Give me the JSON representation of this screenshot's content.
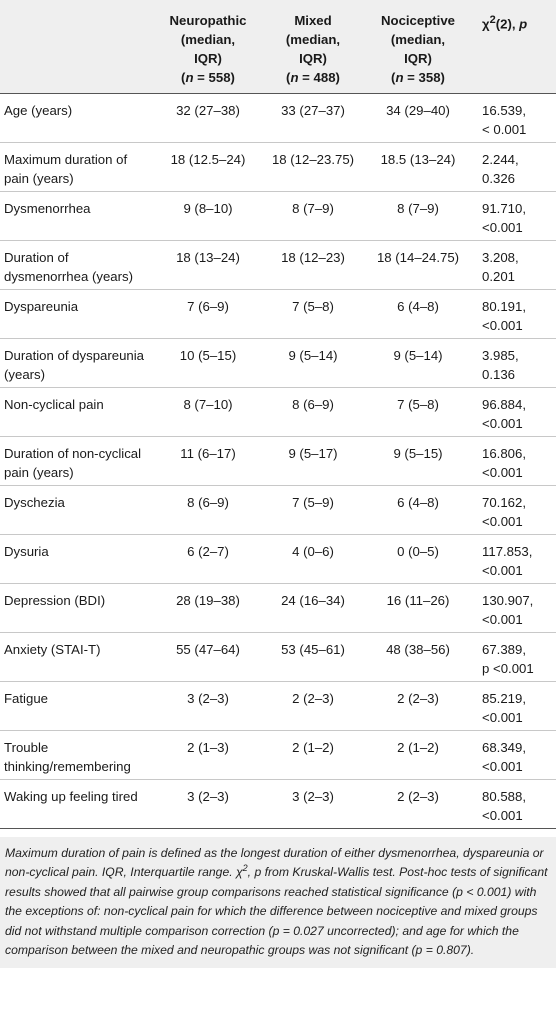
{
  "header": {
    "col1": "",
    "col2": {
      "l1": "Neuropathic",
      "l2": "(median,",
      "l3": "IQR)",
      "n": "n",
      "eq": " = 558)"
    },
    "col3": {
      "l1": "Mixed",
      "l2": "(median,",
      "l3": "IQR)",
      "n": "n",
      "eq": " = 488)"
    },
    "col4": {
      "l1": "Nociceptive",
      "l2": "(median,",
      "l3": "IQR)",
      "n": "n",
      "eq": " = 358)"
    },
    "col5": {
      "chi": "χ",
      "sup": "2",
      "rest": "(2), ",
      "p": "p"
    }
  },
  "rows": [
    {
      "label": "Age (years)",
      "neuro": "32 (27–38)",
      "mixed": "33 (27–37)",
      "noci": "34 (29–40)",
      "chi1": "16.539,",
      "chi2": "< 0.001"
    },
    {
      "label": "Maximum duration of pain (years)",
      "neuro": "18 (12.5–24)",
      "mixed": "18 (12–23.75)",
      "noci": "18.5 (13–24)",
      "chi1": "2.244,",
      "chi2": "0.326"
    },
    {
      "label": "Dysmenorrhea",
      "neuro": "9 (8–10)",
      "mixed": "8 (7–9)",
      "noci": "8 (7–9)",
      "chi1": "91.710,",
      "chi2": "<0.001"
    },
    {
      "label": "Duration of dysmenorrhea (years)",
      "neuro": "18 (13–24)",
      "mixed": "18 (12–23)",
      "noci": "18 (14–24.75)",
      "chi1": "3.208,",
      "chi2": "0.201"
    },
    {
      "label": "Dyspareunia",
      "neuro": "7 (6–9)",
      "mixed": "7 (5–8)",
      "noci": "6 (4–8)",
      "chi1": "80.191,",
      "chi2": "<0.001"
    },
    {
      "label": "Duration of dyspareunia (years)",
      "neuro": "10 (5–15)",
      "mixed": "9 (5–14)",
      "noci": "9 (5–14)",
      "chi1": "3.985,",
      "chi2": "0.136"
    },
    {
      "label": "Non-cyclical pain",
      "neuro": "8 (7–10)",
      "mixed": "8 (6–9)",
      "noci": "7 (5–8)",
      "chi1": "96.884,",
      "chi2": "<0.001"
    },
    {
      "label": "Duration of non-cyclical pain (years)",
      "neuro": "11 (6–17)",
      "mixed": "9 (5–17)",
      "noci": "9 (5–15)",
      "chi1": "16.806,",
      "chi2": "<0.001"
    },
    {
      "label": "Dyschezia",
      "neuro": "8 (6–9)",
      "mixed": "7 (5–9)",
      "noci": "6 (4–8)",
      "chi1": "70.162,",
      "chi2": "<0.001"
    },
    {
      "label": "Dysuria",
      "neuro": "6 (2–7)",
      "mixed": "4 (0–6)",
      "noci": "0 (0–5)",
      "chi1": "117.853,",
      "chi2": "<0.001"
    },
    {
      "label": "Depression (BDI)",
      "neuro": "28 (19–38)",
      "mixed": "24 (16–34)",
      "noci": "16 (11–26)",
      "chi1": "130.907,",
      "chi2": "<0.001"
    },
    {
      "label": "Anxiety (STAI-T)",
      "neuro": "55 (47–64)",
      "mixed": "53 (45–61)",
      "noci": "48 (38–56)",
      "chi1": "67.389,",
      "chi2": "p <0.001"
    },
    {
      "label": "Fatigue",
      "neuro": "3 (2–3)",
      "mixed": "2 (2–3)",
      "noci": "2 (2–3)",
      "chi1": "85.219,",
      "chi2": "<0.001"
    },
    {
      "label": "Trouble thinking/remembering",
      "neuro": "2 (1–3)",
      "mixed": "2 (1–2)",
      "noci": "2 (1–2)",
      "chi1": "68.349,",
      "chi2": "<0.001"
    },
    {
      "label": "Waking up feeling tired",
      "neuro": "3 (2–3)",
      "mixed": "3 (2–3)",
      "noci": "2 (2–3)",
      "chi1": "80.588,",
      "chi2": "<0.001"
    }
  ],
  "footnote": {
    "part1": "Maximum duration of pain is defined as the longest duration of either dysmenorrhea, dyspareunia or non-cyclical pain. IQR, Interquartile range. χ",
    "sup": "2",
    "part2": ", p from Kruskal-Wallis test. Post-hoc tests of significant results showed that all pairwise group comparisons reached statistical significance (p < 0.001) with the exceptions of: non-cyclical pain for which the difference between nociceptive and mixed groups did not withstand multiple comparison correction (p = 0.027 uncorrected); and age for which the comparison between the mixed and neuropathic groups was not significant (p = 0.807)."
  }
}
